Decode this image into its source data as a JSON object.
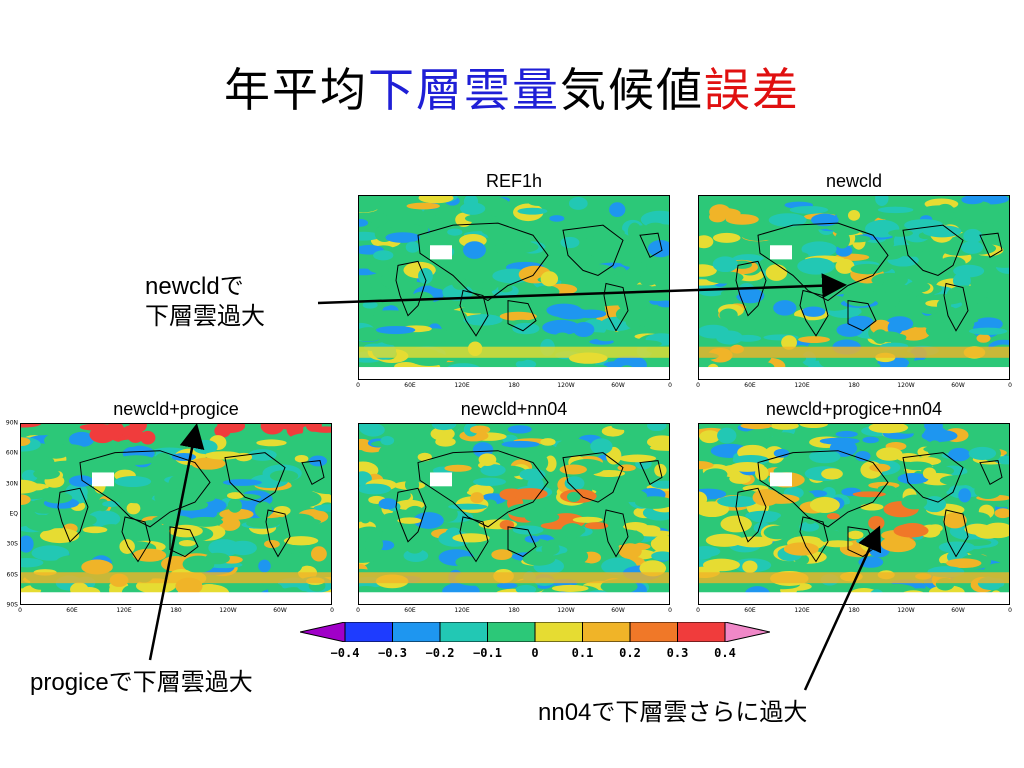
{
  "title": {
    "part1": "年平均",
    "part2": "下層雲量",
    "part3": "気候値",
    "part4": "誤差",
    "colors": {
      "part2": "#1f1fd6",
      "part4": "#e01010"
    }
  },
  "panels": [
    {
      "id": "ref1h",
      "title": "REF1h"
    },
    {
      "id": "newcld",
      "title": "newcld"
    },
    {
      "id": "newcld-progice",
      "title": "newcld+progice"
    },
    {
      "id": "newcld-nn04",
      "title": "newcld+nn04"
    },
    {
      "id": "newcld-progice-nn04",
      "title": "newcld+progice+nn04"
    }
  ],
  "x_tick_labels": [
    "0",
    "60E",
    "120E",
    "180",
    "120W",
    "60W",
    "0"
  ],
  "y_tick_labels": [
    "90N",
    "60N",
    "30N",
    "EQ",
    "30S",
    "60S",
    "90S"
  ],
  "annotations": {
    "newcld": [
      "newcldで",
      "下層雲過大"
    ],
    "progice": "progiceで下層雲過大",
    "nn04": "nn04で下層雲さらに過大"
  },
  "colorbar": {
    "labels": [
      "−0.4",
      "−0.3",
      "−0.2",
      "−0.1",
      "0",
      "0.1",
      "0.2",
      "0.3",
      "0.4"
    ],
    "colors": [
      "#a000c8",
      "#1e3cff",
      "#1e96f0",
      "#22c8b4",
      "#2cc878",
      "#e6dc32",
      "#f0b428",
      "#f07828",
      "#f03c3c",
      "#f088c8"
    ]
  }
}
